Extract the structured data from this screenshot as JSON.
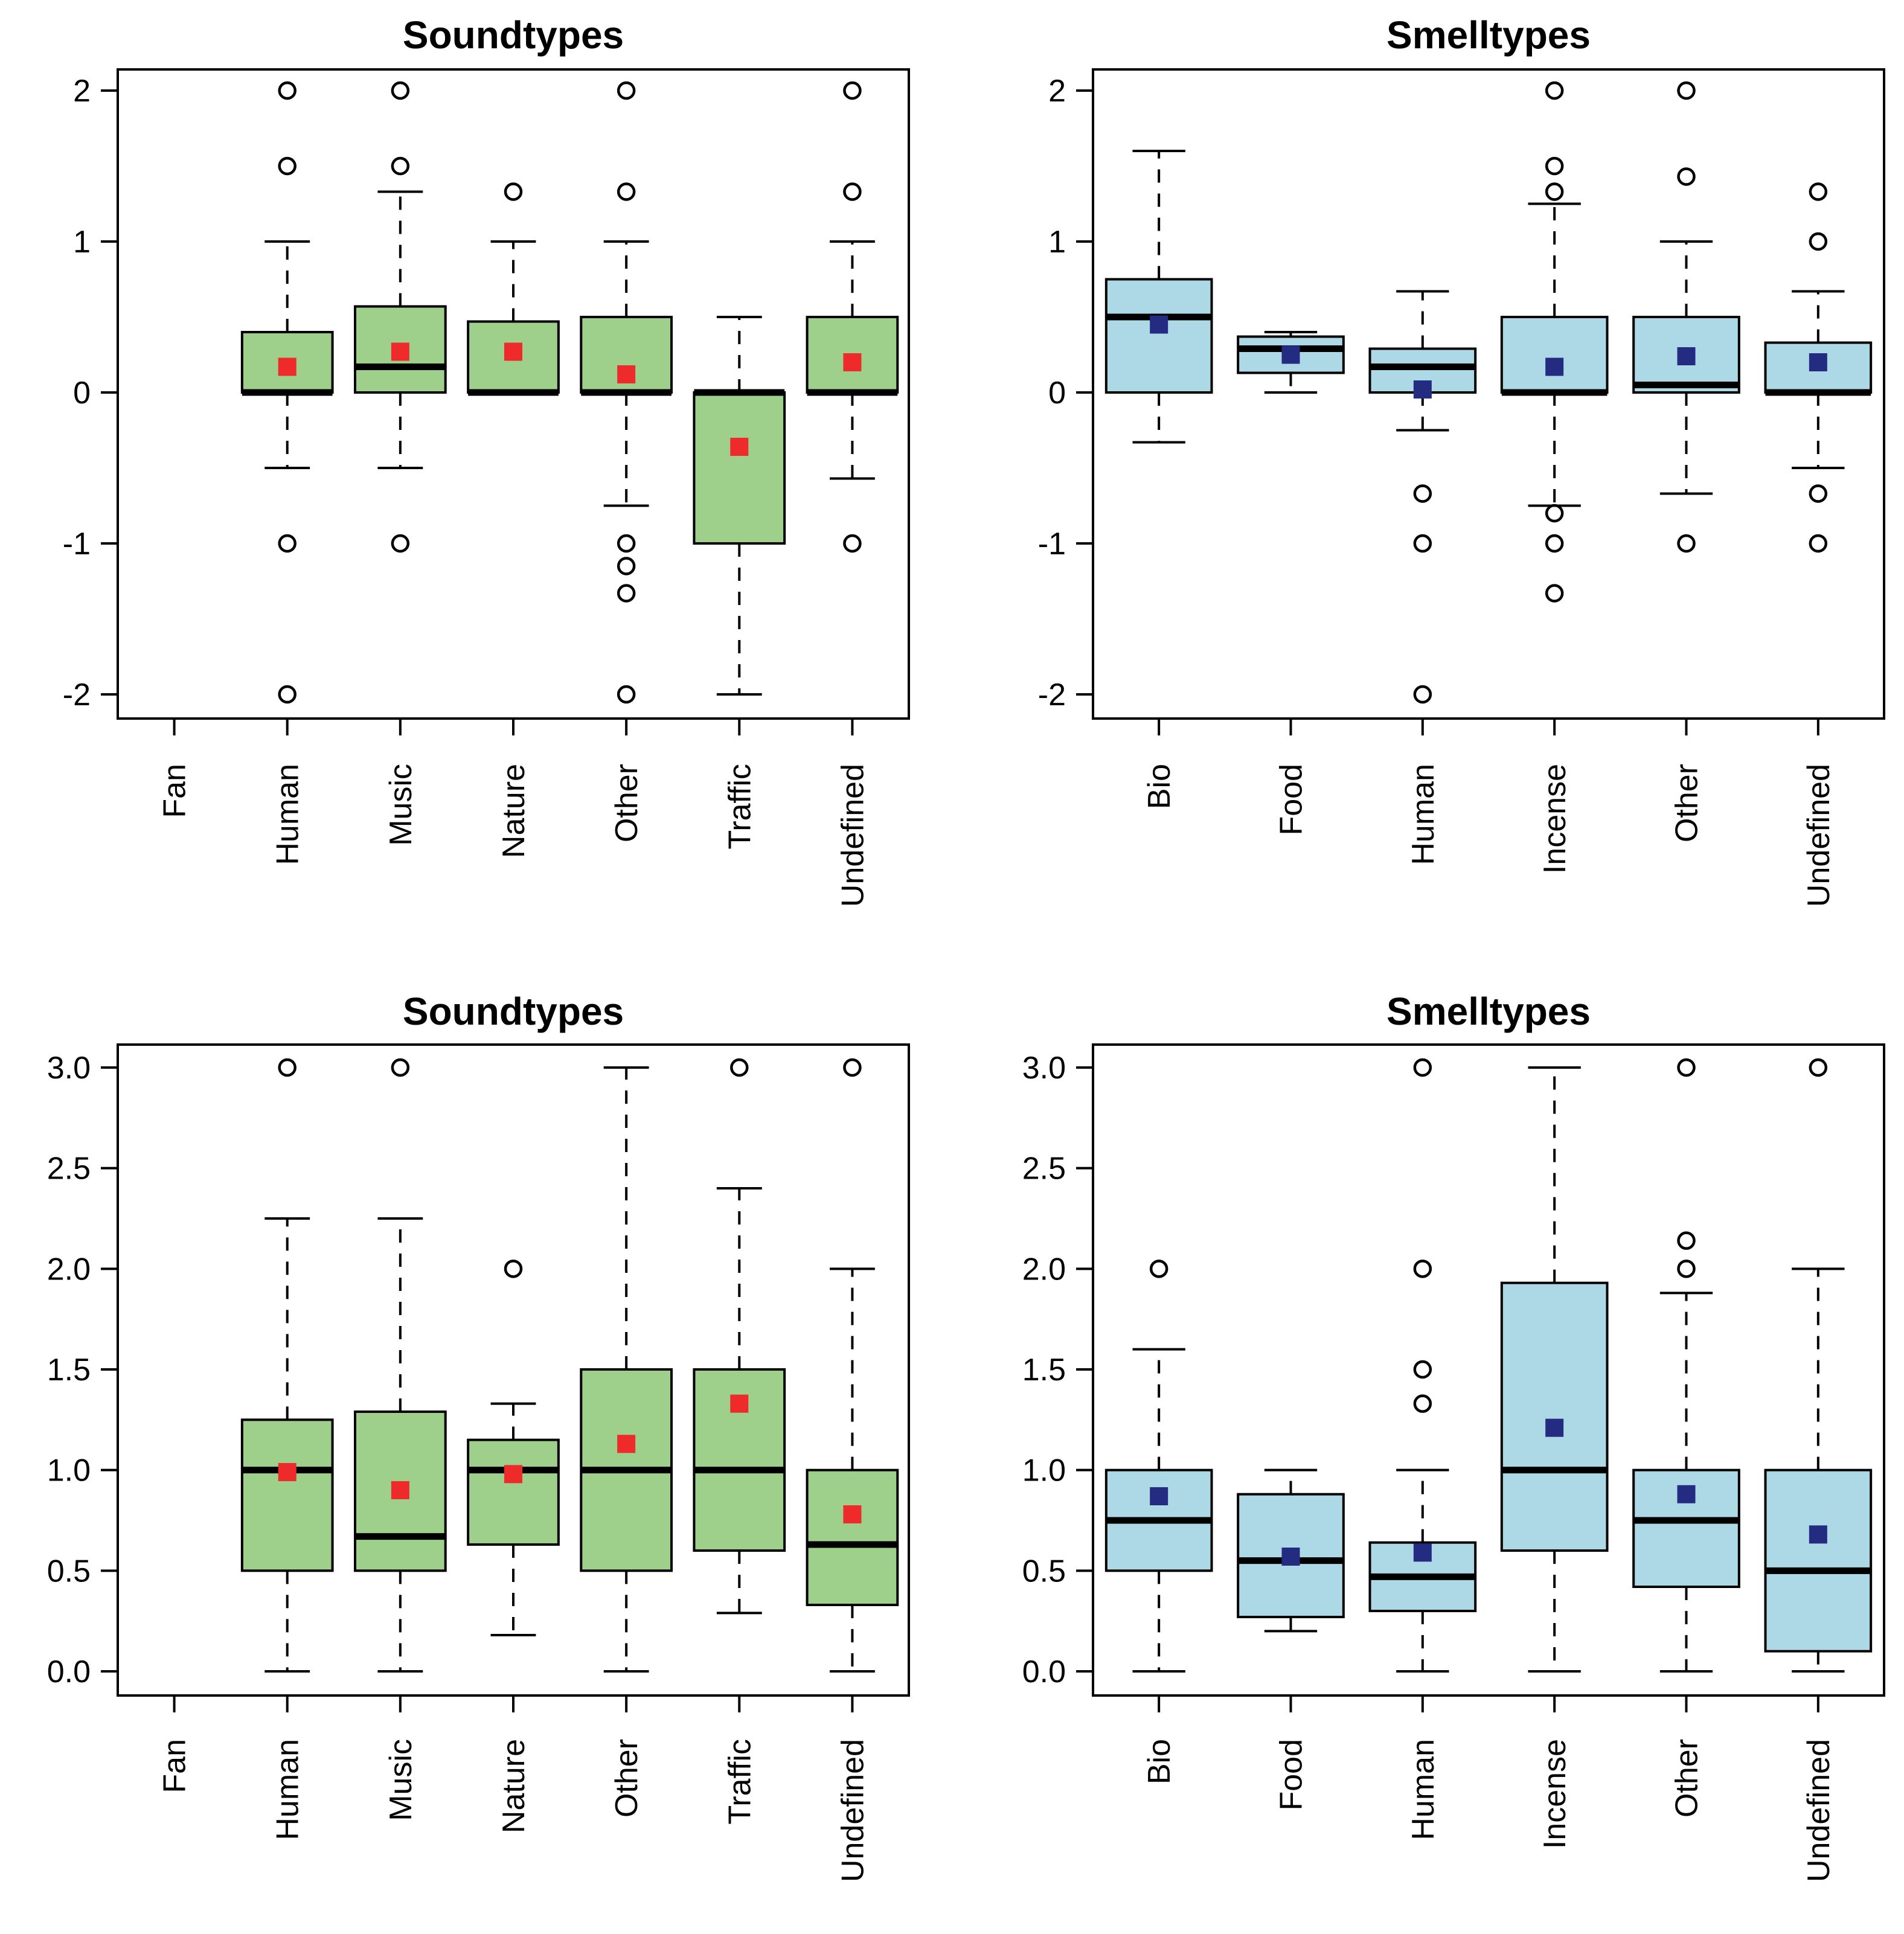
{
  "colors": {
    "sound_fill": "#9ed08b",
    "smell_fill": "#add8e6",
    "sound_mean": "#ee2a2a",
    "smell_mean": "#232c80",
    "stroke": "#000000"
  },
  "chart_data": [
    {
      "id": "top-left",
      "type": "boxplot",
      "title": "Soundtypes",
      "categories": [
        "Fan",
        "Human",
        "Music",
        "Nature",
        "Other",
        "Traffic",
        "Undefined"
      ],
      "ylim": [
        -2,
        2
      ],
      "yticks": [
        -2,
        -1,
        0,
        1,
        2
      ],
      "ytick_labels": [
        "-2",
        "-1",
        "0",
        "1",
        "2"
      ],
      "fill": "sound",
      "boxes": [
        null,
        {
          "lw": -0.5,
          "q1": 0,
          "med": 0,
          "q3": 0.4,
          "uw": 1,
          "mean": 0.17,
          "out": [
            2,
            1.5,
            -1,
            -2
          ]
        },
        {
          "lw": -0.5,
          "q1": 0,
          "med": 0.17,
          "q3": 0.57,
          "uw": 1.33,
          "mean": 0.27,
          "out": [
            2,
            1.5,
            -1
          ]
        },
        {
          "lw": 0,
          "q1": 0,
          "med": 0,
          "q3": 0.47,
          "uw": 1,
          "mean": 0.27,
          "out": [
            1.33
          ]
        },
        {
          "lw": -0.75,
          "q1": 0,
          "med": 0,
          "q3": 0.5,
          "uw": 1,
          "mean": 0.12,
          "out": [
            2,
            1.33,
            -1,
            -1.15,
            -1.33,
            -2
          ]
        },
        {
          "lw": -2,
          "q1": -1,
          "med": 0,
          "q3": 0,
          "uw": 0.5,
          "mean": -0.36,
          "out": []
        },
        {
          "lw": -0.57,
          "q1": 0,
          "med": 0,
          "q3": 0.5,
          "uw": 1,
          "mean": 0.2,
          "out": [
            2,
            1.33,
            -1
          ]
        }
      ]
    },
    {
      "id": "top-right",
      "type": "boxplot",
      "title": "Smelltypes",
      "categories": [
        "Bio",
        "Food",
        "Human",
        "Incense",
        "Other",
        "Undefined"
      ],
      "ylim": [
        -2,
        2
      ],
      "yticks": [
        -2,
        -1,
        0,
        1,
        2
      ],
      "ytick_labels": [
        "-2",
        "-1",
        "0",
        "1",
        "2"
      ],
      "fill": "smell",
      "boxes": [
        {
          "lw": -0.33,
          "q1": 0,
          "med": 0.5,
          "q3": 0.75,
          "uw": 1.6,
          "mean": 0.45,
          "out": []
        },
        {
          "lw": 0,
          "q1": 0.13,
          "med": 0.29,
          "q3": 0.37,
          "uw": 0.4,
          "mean": 0.25,
          "out": []
        },
        {
          "lw": -0.25,
          "q1": 0,
          "med": 0.17,
          "q3": 0.29,
          "uw": 0.67,
          "mean": 0.02,
          "out": [
            -0.67,
            -1,
            -2
          ]
        },
        {
          "lw": -0.75,
          "q1": 0,
          "med": 0,
          "q3": 0.5,
          "uw": 1.25,
          "mean": 0.17,
          "out": [
            2,
            1.5,
            1.33,
            -0.8,
            -1,
            -1.33
          ]
        },
        {
          "lw": -0.67,
          "q1": 0,
          "med": 0.05,
          "q3": 0.5,
          "uw": 1,
          "mean": 0.24,
          "out": [
            2,
            1.43,
            -1
          ]
        },
        {
          "lw": -0.5,
          "q1": 0,
          "med": 0,
          "q3": 0.33,
          "uw": 0.67,
          "mean": 0.2,
          "out": [
            1.33,
            1,
            -0.67,
            -1
          ]
        }
      ]
    },
    {
      "id": "bottom-left",
      "type": "boxplot",
      "title": "Soundtypes",
      "categories": [
        "Fan",
        "Human",
        "Music",
        "Nature",
        "Other",
        "Traffic",
        "Undefined"
      ],
      "ylim": [
        0,
        3
      ],
      "yticks": [
        0,
        0.5,
        1,
        1.5,
        2,
        2.5,
        3
      ],
      "ytick_labels": [
        "0.0",
        "0.5",
        "1.0",
        "1.5",
        "2.0",
        "2.5",
        "3.0"
      ],
      "fill": "sound",
      "boxes": [
        null,
        {
          "lw": 0,
          "q1": 0.5,
          "med": 1,
          "q3": 1.25,
          "uw": 2.25,
          "mean": 0.99,
          "out": [
            3
          ]
        },
        {
          "lw": 0,
          "q1": 0.5,
          "med": 0.67,
          "q3": 1.29,
          "uw": 2.25,
          "mean": 0.9,
          "out": [
            3
          ]
        },
        {
          "lw": 0.18,
          "q1": 0.63,
          "med": 1,
          "q3": 1.15,
          "uw": 1.33,
          "mean": 0.98,
          "out": [
            2
          ]
        },
        {
          "lw": 0,
          "q1": 0.5,
          "med": 1,
          "q3": 1.5,
          "uw": 3,
          "mean": 1.13,
          "out": []
        },
        {
          "lw": 0.29,
          "q1": 0.6,
          "med": 1,
          "q3": 1.5,
          "uw": 2.4,
          "mean": 1.33,
          "out": [
            3
          ]
        },
        {
          "lw": 0,
          "q1": 0.33,
          "med": 0.63,
          "q3": 1,
          "uw": 2,
          "mean": 0.78,
          "out": [
            3
          ]
        }
      ]
    },
    {
      "id": "bottom-right",
      "type": "boxplot",
      "title": "Smelltypes",
      "categories": [
        "Bio",
        "Food",
        "Human",
        "Incense",
        "Other",
        "Undefined"
      ],
      "ylim": [
        0,
        3
      ],
      "yticks": [
        0,
        0.5,
        1,
        1.5,
        2,
        2.5,
        3
      ],
      "ytick_labels": [
        "0.0",
        "0.5",
        "1.0",
        "1.5",
        "2.0",
        "2.5",
        "3.0"
      ],
      "fill": "smell",
      "boxes": [
        {
          "lw": 0,
          "q1": 0.5,
          "med": 0.75,
          "q3": 1,
          "uw": 1.6,
          "mean": 0.87,
          "out": [
            2
          ]
        },
        {
          "lw": 0.2,
          "q1": 0.27,
          "med": 0.55,
          "q3": 0.88,
          "uw": 1,
          "mean": 0.57,
          "out": []
        },
        {
          "lw": 0,
          "q1": 0.3,
          "med": 0.47,
          "q3": 0.64,
          "uw": 1,
          "mean": 0.59,
          "out": [
            3,
            2,
            1.5,
            1.33
          ]
        },
        {
          "lw": 0,
          "q1": 0.6,
          "med": 1,
          "q3": 1.93,
          "uw": 3,
          "mean": 1.21,
          "out": []
        },
        {
          "lw": 0,
          "q1": 0.42,
          "med": 0.75,
          "q3": 1,
          "uw": 1.88,
          "mean": 0.88,
          "out": [
            3,
            2.14,
            2
          ]
        },
        {
          "lw": 0,
          "q1": 0.1,
          "med": 0.5,
          "q3": 1,
          "uw": 2,
          "mean": 0.68,
          "out": [
            3
          ]
        }
      ]
    }
  ]
}
